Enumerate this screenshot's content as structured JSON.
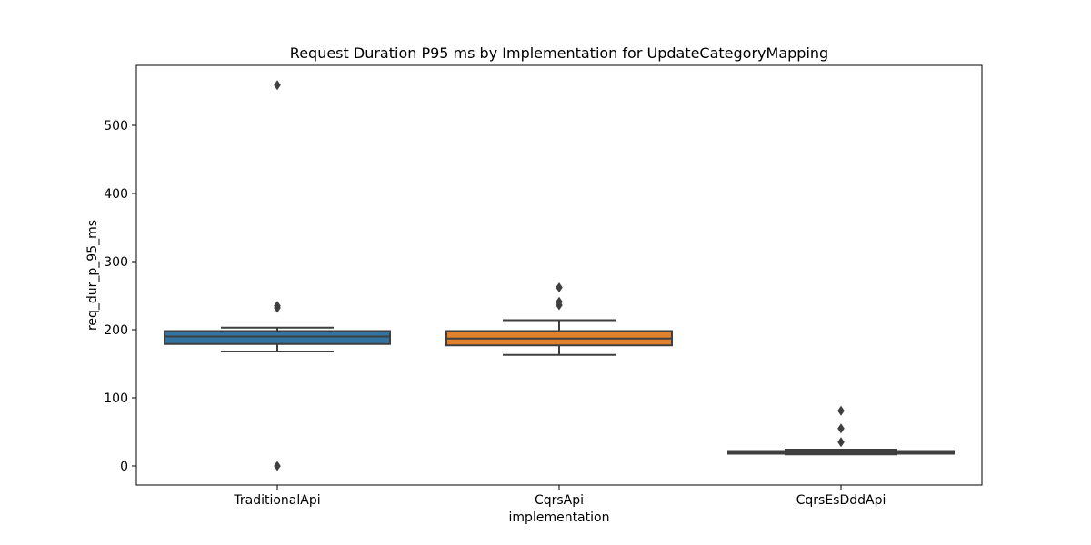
{
  "chart_data": {
    "type": "box",
    "title": "Request Duration P95 ms by Implementation for UpdateCategoryMapping",
    "xlabel": "implementation",
    "ylabel": "req_dur_p_95_ms",
    "ylim": [
      -28,
      588
    ],
    "yticks": [
      0,
      100,
      200,
      300,
      400,
      500
    ],
    "grid": false,
    "categories": [
      "TraditionalApi",
      "CqrsApi",
      "CqrsEsDddApi"
    ],
    "series": [
      {
        "category": "TraditionalApi",
        "color": "#3274a1",
        "whisker_low": 168,
        "q1": 179,
        "median": 190,
        "q3": 198,
        "whisker_high": 203,
        "outliers": [
          559,
          235,
          232,
          0
        ]
      },
      {
        "category": "CqrsApi",
        "color": "#e1812c",
        "whisker_low": 163,
        "q1": 177,
        "median": 187,
        "q3": 198,
        "whisker_high": 214,
        "outliers": [
          262,
          241,
          236
        ]
      },
      {
        "category": "CqrsEsDddApi",
        "color": "#3a923a",
        "whisker_low": 17,
        "q1": 18,
        "median": 20,
        "q3": 22,
        "whisker_high": 24,
        "outliers": [
          81,
          55,
          35
        ]
      }
    ]
  }
}
